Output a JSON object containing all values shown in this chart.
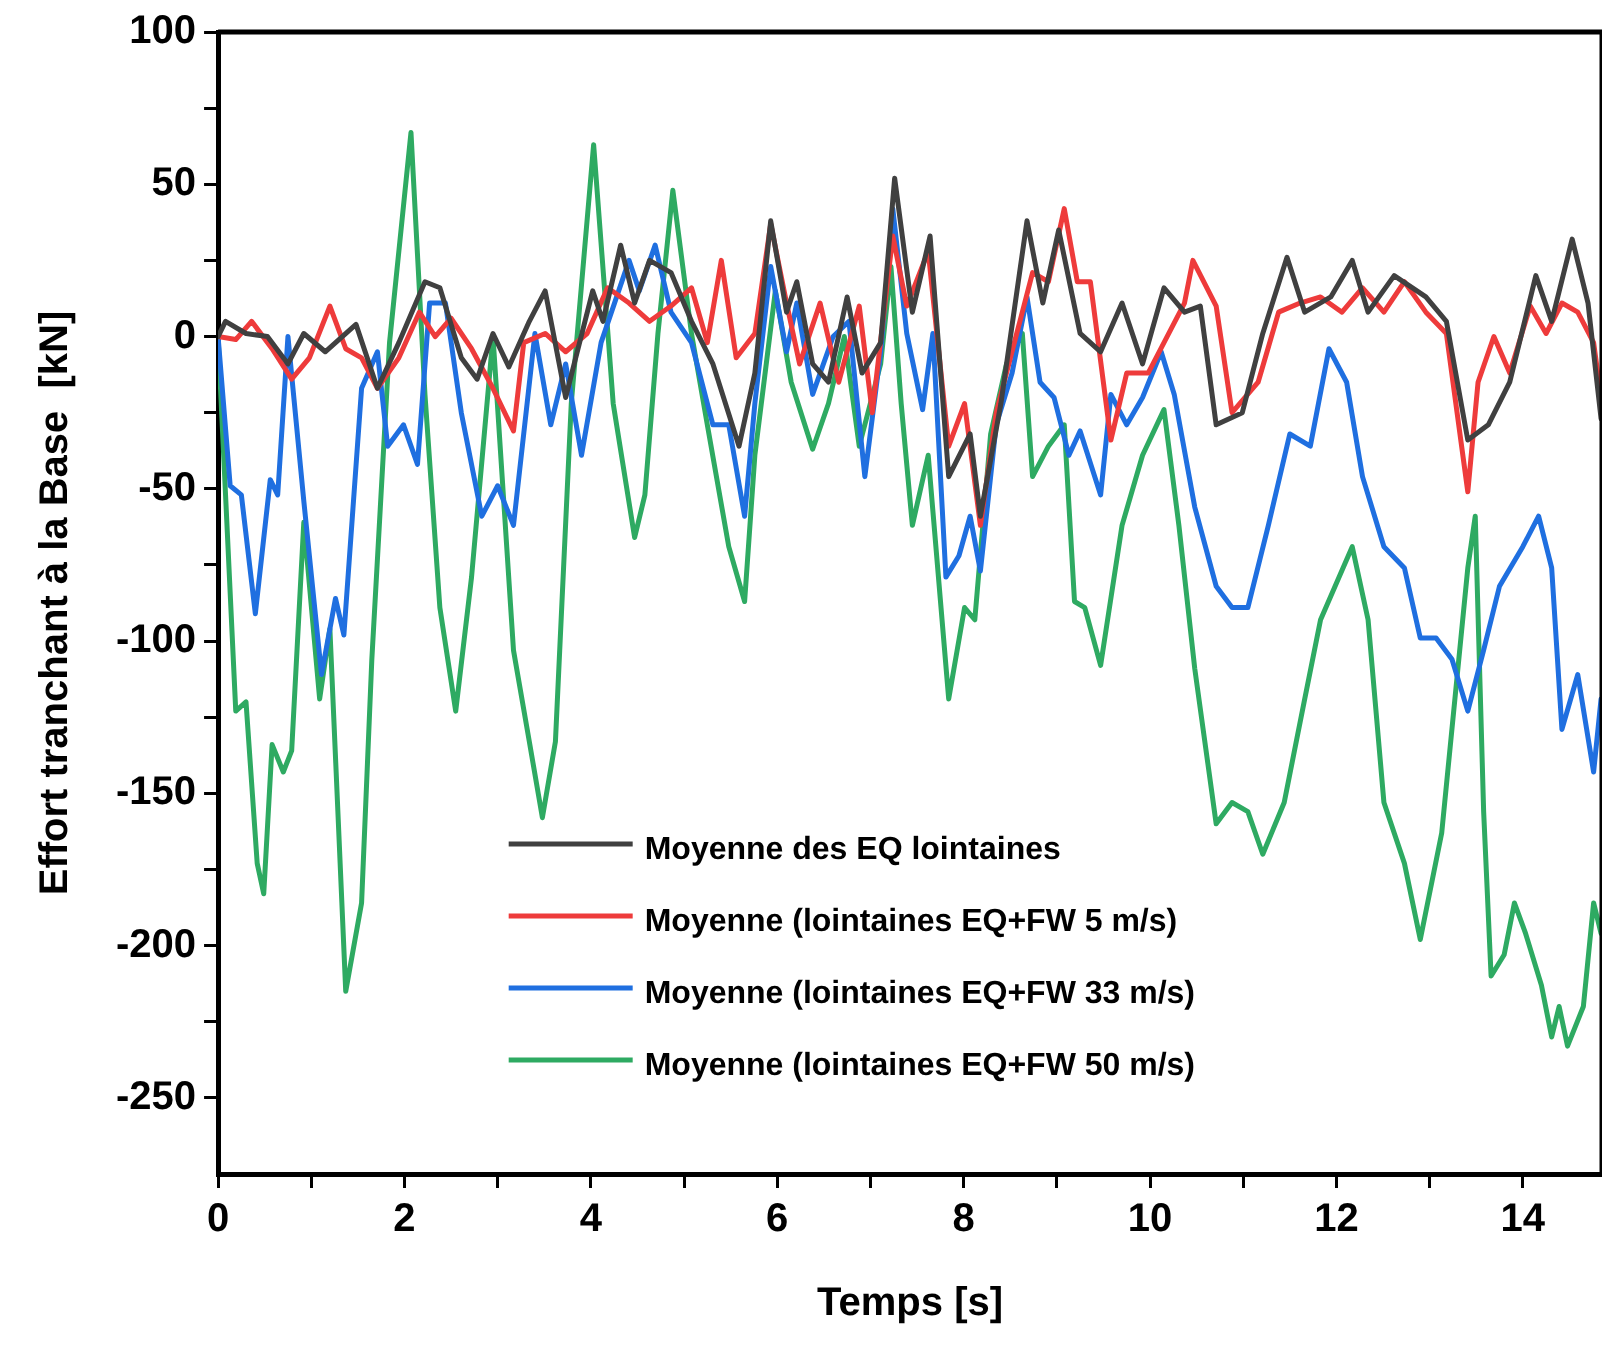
{
  "chart_data": {
    "type": "line",
    "xlabel": "Temps [s]",
    "ylabel": "Effort tranchant à la Base  [kN]",
    "xlim": [
      0,
      14.85
    ],
    "ylim": [
      -275,
      100
    ],
    "xticks": [
      0,
      {
        "value": 1,
        "label": null
      },
      2,
      {
        "value": 3,
        "label": null
      },
      4,
      {
        "value": 5,
        "label": null
      },
      6,
      {
        "value": 7,
        "label": null
      },
      8,
      {
        "value": 9,
        "label": null
      },
      10,
      {
        "value": 11,
        "label": null
      },
      12,
      {
        "value": 13,
        "label": null
      },
      14
    ],
    "yticks": [
      -250,
      {
        "value": -225,
        "label": null
      },
      -200,
      {
        "value": -175,
        "label": null
      },
      -150,
      {
        "value": -125,
        "label": null
      },
      -100,
      {
        "value": -75,
        "label": null
      },
      -50,
      {
        "value": -25,
        "label": null
      },
      0,
      {
        "value": 25,
        "label": null
      },
      50,
      {
        "value": 75,
        "label": null
      },
      100
    ],
    "grid": false,
    "legend": "bottom",
    "line_style": "solid",
    "marker": "none",
    "series": [
      {
        "name": "Moyenne des EQ lointaines",
        "color": "#404040",
        "x": [
          0,
          0.08,
          0.3,
          0.53,
          0.75,
          0.92,
          1.15,
          1.48,
          1.71,
          1.94,
          2.22,
          2.38,
          2.61,
          2.78,
          2.95,
          3.12,
          3.34,
          3.51,
          3.73,
          4.02,
          4.13,
          4.32,
          4.47,
          4.63,
          4.86,
          5.08,
          5.31,
          5.59,
          5.76,
          5.93,
          6.1,
          6.21,
          6.38,
          6.55,
          6.75,
          6.91,
          7.11,
          7.26,
          7.45,
          7.64,
          7.84,
          8.07,
          8.18,
          8.4,
          8.68,
          8.85,
          9.02,
          9.25,
          9.47,
          9.7,
          9.92,
          10.15,
          10.37,
          10.54,
          10.71,
          10.99,
          11.21,
          11.47,
          11.66,
          11.94,
          12.17,
          12.34,
          12.62,
          12.96,
          13.18,
          13.41,
          13.63,
          13.86,
          14.14,
          14.31,
          14.53,
          14.7,
          14.84
        ],
        "values": [
          0,
          5,
          1,
          0,
          -9,
          1,
          -5,
          4,
          -17,
          -2,
          18,
          16,
          -7,
          -14,
          1,
          -10,
          5,
          15,
          -20,
          15,
          5,
          30,
          11,
          25,
          21,
          5,
          -9,
          -36,
          -12,
          38,
          8,
          18,
          -9,
          -15,
          13,
          -12,
          -2,
          52,
          8,
          33,
          -46,
          -32,
          -59,
          -22,
          38,
          11,
          35,
          1,
          -5,
          11,
          -9,
          16,
          8,
          10,
          -29,
          -25,
          1,
          26,
          8,
          13,
          25,
          8,
          20,
          13,
          5,
          -34,
          -29,
          -15,
          20,
          5,
          32,
          11,
          -27
        ]
      },
      {
        "name": "Moyenne (lointaines EQ+FW 5 m/s)",
        "color": "#ee3b3b",
        "x": [
          0,
          0.19,
          0.36,
          0.58,
          0.79,
          0.98,
          1.2,
          1.37,
          1.54,
          1.71,
          1.94,
          2.16,
          2.33,
          2.5,
          2.72,
          2.95,
          3.17,
          3.28,
          3.51,
          3.73,
          3.96,
          4.18,
          4.41,
          4.63,
          4.86,
          5.08,
          5.25,
          5.4,
          5.56,
          5.76,
          5.93,
          6.1,
          6.24,
          6.46,
          6.66,
          6.88,
          7.02,
          7.24,
          7.39,
          7.62,
          7.84,
          8.01,
          8.18,
          8.35,
          8.57,
          8.74,
          8.91,
          9.08,
          9.22,
          9.36,
          9.58,
          9.75,
          9.98,
          10.15,
          10.37,
          10.46,
          10.71,
          10.88,
          11.16,
          11.38,
          11.61,
          11.83,
          12.06,
          12.28,
          12.51,
          12.73,
          12.96,
          13.18,
          13.41,
          13.52,
          13.69,
          13.86,
          14.08,
          14.25,
          14.42,
          14.59,
          14.76,
          14.84
        ],
        "values": [
          0,
          -1,
          5,
          -4,
          -14,
          -7,
          10,
          -4,
          -7,
          -17,
          -7,
          8,
          0,
          6,
          -4,
          -17,
          -31,
          -2,
          1,
          -5,
          1,
          16,
          11,
          5,
          10,
          16,
          -2,
          25,
          -7,
          1,
          37,
          11,
          -9,
          11,
          -15,
          10,
          -25,
          33,
          10,
          28,
          -36,
          -22,
          -62,
          -25,
          1,
          21,
          18,
          42,
          18,
          18,
          -34,
          -12,
          -12,
          -2,
          11,
          25,
          10,
          -25,
          -15,
          8,
          11,
          13,
          8,
          16,
          8,
          18,
          8,
          1,
          -51,
          -15,
          0,
          -12,
          10,
          1,
          11,
          8,
          -2,
          -20
        ]
      },
      {
        "name": "Moyenne (lointaines EQ+FW 33 m/s)",
        "color": "#1f6fe0",
        "x": [
          0,
          0.13,
          0.25,
          0.4,
          0.56,
          0.64,
          0.75,
          0.92,
          1.11,
          1.26,
          1.35,
          1.54,
          1.71,
          1.82,
          1.99,
          2.14,
          2.27,
          2.44,
          2.61,
          2.83,
          3,
          3.17,
          3.4,
          3.57,
          3.73,
          3.9,
          4.11,
          4.41,
          4.52,
          4.69,
          4.86,
          5.08,
          5.31,
          5.48,
          5.65,
          5.76,
          5.93,
          6.1,
          6.21,
          6.38,
          6.6,
          6.77,
          6.94,
          7.11,
          7.24,
          7.39,
          7.56,
          7.67,
          7.81,
          7.95,
          8.07,
          8.18,
          8.35,
          8.52,
          8.68,
          8.82,
          8.97,
          9.13,
          9.25,
          9.47,
          9.58,
          9.75,
          9.92,
          10.12,
          10.26,
          10.48,
          10.71,
          10.88,
          11.05,
          11.27,
          11.5,
          11.72,
          11.92,
          12.11,
          12.28,
          12.51,
          12.73,
          12.9,
          13.07,
          13.24,
          13.41,
          13.58,
          13.75,
          14,
          14.17,
          14.31,
          14.42,
          14.59,
          14.76,
          14.84
        ],
        "values": [
          0,
          -49,
          -52,
          -91,
          -47,
          -52,
          0,
          -54,
          -111,
          -86,
          -98,
          -17,
          -5,
          -36,
          -29,
          -42,
          11,
          11,
          -25,
          -59,
          -49,
          -62,
          1,
          -29,
          -9,
          -39,
          -2,
          25,
          15,
          30,
          8,
          -2,
          -29,
          -29,
          -59,
          -22,
          23,
          -5,
          11,
          -19,
          0,
          5,
          -46,
          -5,
          42,
          1,
          -24,
          1,
          -79,
          -72,
          -59,
          -77,
          -29,
          -12,
          13,
          -15,
          -20,
          -39,
          -31,
          -52,
          -19,
          -29,
          -20,
          -5,
          -19,
          -56,
          -82,
          -89,
          -89,
          -62,
          -32,
          -36,
          -4,
          -15,
          -46,
          -69,
          -76,
          -99,
          -99,
          -106,
          -123,
          -103,
          -82,
          -69,
          -59,
          -76,
          -129,
          -111,
          -143,
          -119
        ]
      },
      {
        "name": "Moyenne (lointaines EQ+FW 50 m/s)",
        "color": "#2eaa62",
        "x": [
          0,
          0.19,
          0.3,
          0.42,
          0.49,
          0.58,
          0.7,
          0.79,
          0.92,
          1.09,
          1.2,
          1.37,
          1.54,
          1.65,
          1.84,
          2.07,
          2.22,
          2.38,
          2.55,
          2.72,
          2.95,
          3.17,
          3.34,
          3.48,
          3.62,
          3.79,
          4.03,
          4.24,
          4.47,
          4.58,
          4.72,
          4.88,
          5.08,
          5.25,
          5.48,
          5.65,
          5.76,
          5.98,
          6.15,
          6.38,
          6.55,
          6.72,
          6.88,
          7.11,
          7.22,
          7.33,
          7.45,
          7.62,
          7.84,
          8.01,
          8.12,
          8.29,
          8.46,
          8.63,
          8.74,
          8.91,
          9.08,
          9.19,
          9.3,
          9.47,
          9.58,
          9.7,
          9.92,
          10.15,
          10.31,
          10.48,
          10.71,
          10.88,
          11.05,
          11.21,
          11.44,
          11.66,
          11.83,
          12.17,
          12.34,
          12.51,
          12.73,
          12.9,
          13.13,
          13.41,
          13.49,
          13.58,
          13.66,
          13.8,
          13.91,
          14.03,
          14.2,
          14.31,
          14.39,
          14.48,
          14.65,
          14.76,
          14.84
        ],
        "values": [
          0,
          -123,
          -120,
          -173,
          -183,
          -134,
          -143,
          -136,
          -61,
          -119,
          -96,
          -215,
          -186,
          -106,
          -2,
          67,
          -19,
          -89,
          -123,
          -79,
          0,
          -103,
          -133,
          -158,
          -133,
          -22,
          63,
          -22,
          -66,
          -52,
          1,
          48,
          1,
          -29,
          -69,
          -87,
          -39,
          15,
          -15,
          -37,
          -22,
          0,
          -36,
          -9,
          23,
          -22,
          -62,
          -39,
          -119,
          -89,
          -93,
          -32,
          -9,
          1,
          -46,
          -36,
          -29,
          -87,
          -89,
          -108,
          -86,
          -62,
          -39,
          -24,
          -62,
          -109,
          -160,
          -153,
          -156,
          -170,
          -153,
          -119,
          -93,
          -69,
          -93,
          -153,
          -173,
          -198,
          -163,
          -76,
          -59,
          -156,
          -210,
          -203,
          -186,
          -196,
          -213,
          -230,
          -220,
          -233,
          -220,
          -186,
          -196
        ]
      }
    ]
  }
}
